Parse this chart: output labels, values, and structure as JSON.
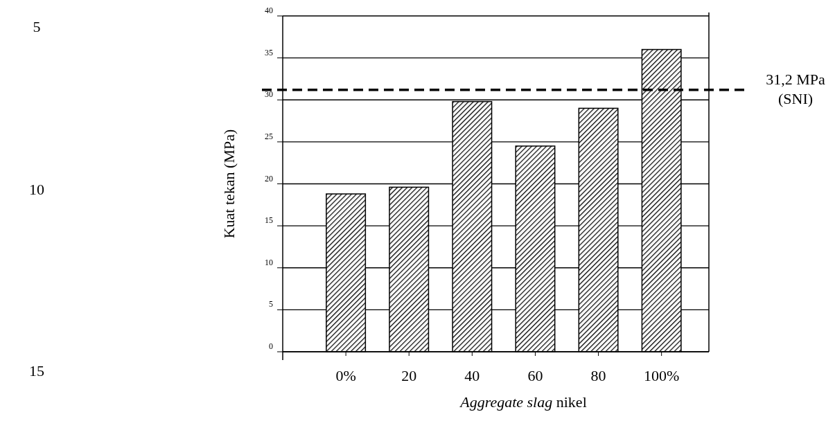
{
  "chart_data": {
    "type": "bar",
    "categories": [
      "0%",
      "20",
      "40",
      "60",
      "80",
      "100%"
    ],
    "series": [
      {
        "color": "#000000",
        "values": [
          18.8,
          19.6,
          29.8,
          24.5,
          29.0,
          36.0
        ]
      }
    ],
    "xlabel": "Aggregate slag nikel",
    "ylabel": "Kuat tekan (MPa)",
    "ylim": [
      0,
      40
    ],
    "yticks": [
      0,
      5,
      10,
      15,
      20,
      25,
      30,
      35,
      40
    ],
    "grid": "y",
    "ref_lines": [
      {
        "axis": "y",
        "value": 31.2,
        "label": "31,2 MPa (SNI)",
        "line_style": "dashed",
        "color": "#000000"
      }
    ],
    "annotations": [
      "5",
      "10",
      "15"
    ]
  }
}
